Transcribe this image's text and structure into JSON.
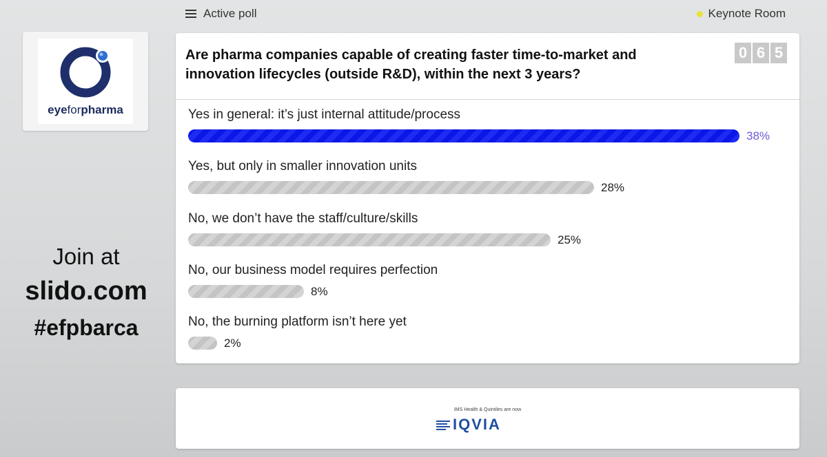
{
  "topbar": {
    "left_label": "Active poll",
    "right_label": "Keynote Room"
  },
  "logo": {
    "brand_bold": "eye",
    "brand_light": "for",
    "brand_end": "pharma",
    "colors": {
      "ring": "#1f2f6b",
      "dot": "#2e6fd0"
    }
  },
  "join": {
    "line1": "Join at",
    "line2": "slido.com",
    "line3": "#efpbarca"
  },
  "poll": {
    "question": "Are pharma companies capable of creating faster time-to-market and innovation lifecycles (outside R&D), within the next 3 years?",
    "counter_digits": [
      "0",
      "6",
      "5"
    ],
    "options": [
      {
        "label": "Yes in general: it’s just internal attitude/process",
        "percent": 38,
        "percent_text": "38%",
        "winner": true
      },
      {
        "label": "Yes, but only in smaller innovation units",
        "percent": 28,
        "percent_text": "28%",
        "winner": false
      },
      {
        "label": "No, we don’t have the staff/culture/skills",
        "percent": 25,
        "percent_text": "25%",
        "winner": false
      },
      {
        "label": "No, our business model requires perfection",
        "percent": 8,
        "percent_text": "8%",
        "winner": false
      },
      {
        "label": "No, the burning platform isn’t here yet",
        "percent": 2,
        "percent_text": "2%",
        "winner": false
      }
    ],
    "colors": {
      "winner_bar": "#0b17e6",
      "other_bar": "#c4c4c4",
      "winner_pct": "#6a5cd6"
    }
  },
  "sponsor": {
    "small_text": "IMS Health & Quintiles are now",
    "brand": "IQVIA"
  }
}
